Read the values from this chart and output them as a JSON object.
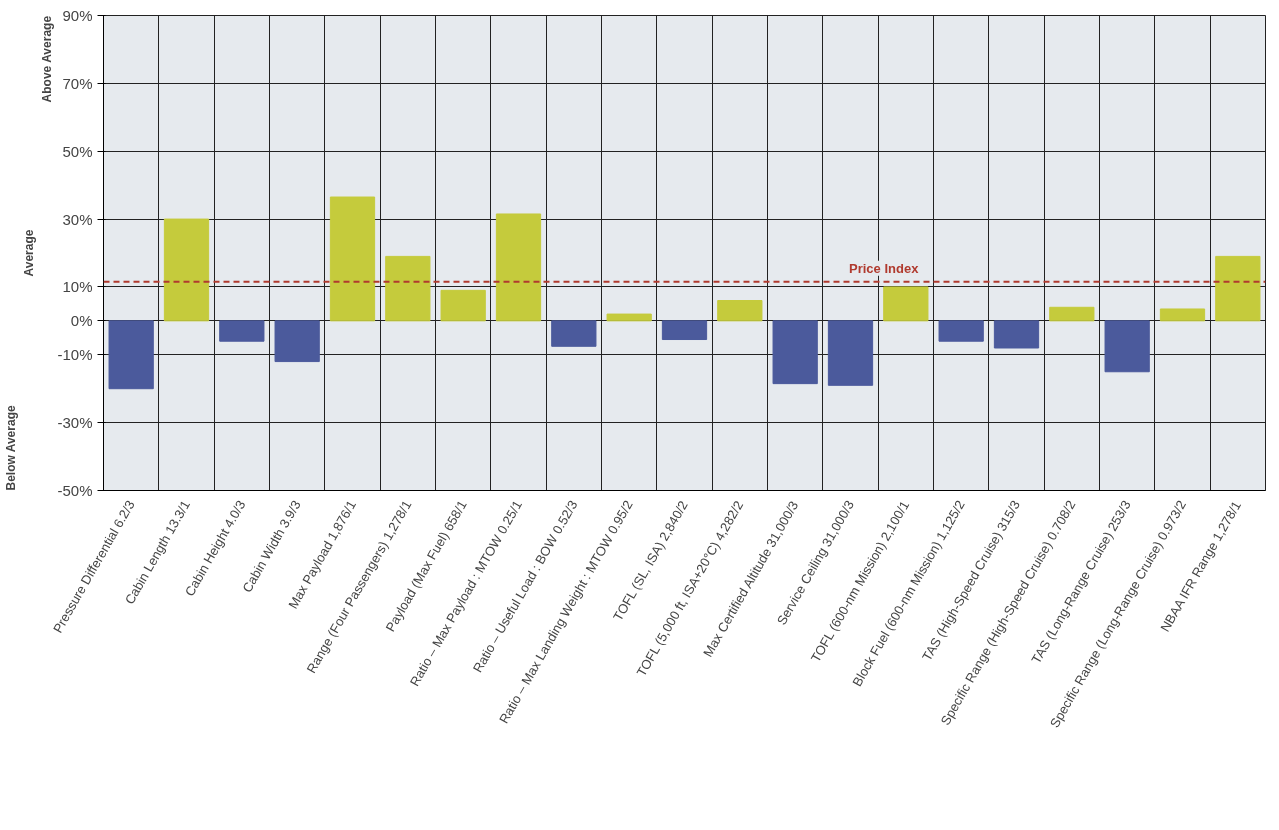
{
  "chart_data": {
    "type": "bar",
    "categories": [
      "Pressure Differential 6.2/3",
      "Cabin Length 13.3/1",
      "Cabin Height 4.0/3",
      "Cabin Width 3.9/3",
      "Max Payload 1,876/1",
      "Range (Four Passengers) 1,278/1",
      "Payload (Max Fuel) 658/1",
      "Ratio – Max Payload : MTOW 0.25/1",
      "Ratio – Useful Load : BOW 0.52/3",
      "Ratio – Max Landing Weight : MTOW 0.95/2",
      "TOFL (SL, ISA) 2,840/2",
      "TOFL (5,000 ft, ISA+20°C) 4,282/2",
      "Max Certified Altitude 31,000/3",
      "Service Ceiling 31,000/3",
      "TOFL (600-nm Mission) 2,100/1",
      "Block Fuel (600-nm Mission) 1,125/2",
      "TAS (High-Speed Cruise) 315/3",
      "Specific Range (High-Speed Cruise) 0.708/2",
      "TAS (Long-Range Cruise) 253/3",
      "Specific Range (Long-Range Cruise) 0.973/2",
      "NBAA IFR Range 1,278/1"
    ],
    "values": [
      -20,
      30,
      -6,
      -12,
      36.5,
      19,
      9,
      31.5,
      -7.5,
      2,
      -5.5,
      6,
      -18.5,
      -19,
      10,
      -6,
      -8,
      4,
      -15,
      3.5,
      19
    ],
    "colors": [
      "#4b5a9c",
      "#c5cb3c",
      "#4b5a9c",
      "#4b5a9c",
      "#c5cb3c",
      "#c5cb3c",
      "#c5cb3c",
      "#c5cb3c",
      "#4b5a9c",
      "#c5cb3c",
      "#4b5a9c",
      "#c5cb3c",
      "#4b5a9c",
      "#4b5a9c",
      "#c5cb3c",
      "#4b5a9c",
      "#4b5a9c",
      "#c5cb3c",
      "#4b5a9c",
      "#c5cb3c",
      "#c5cb3c"
    ],
    "ylim": [
      -50,
      90
    ],
    "yticks": [
      {
        "value": -50,
        "label": "-50%"
      },
      {
        "value": -30,
        "label": "-30%"
      },
      {
        "value": -10,
        "label": "-10%"
      },
      {
        "value": 0,
        "label": "0%"
      },
      {
        "value": 10,
        "label": "10%"
      },
      {
        "value": 30,
        "label": "30%"
      },
      {
        "value": 50,
        "label": "50%"
      },
      {
        "value": 70,
        "label": "70%"
      },
      {
        "value": 90,
        "label": "90%"
      }
    ],
    "grid": true,
    "ref_lines": [
      {
        "axis": "y",
        "value": 11.5,
        "label": "Price Index",
        "color": "#b03a2e",
        "line_style": "dashed"
      }
    ],
    "annotations": [
      "Above Average",
      "Average",
      "Below Average"
    ]
  }
}
